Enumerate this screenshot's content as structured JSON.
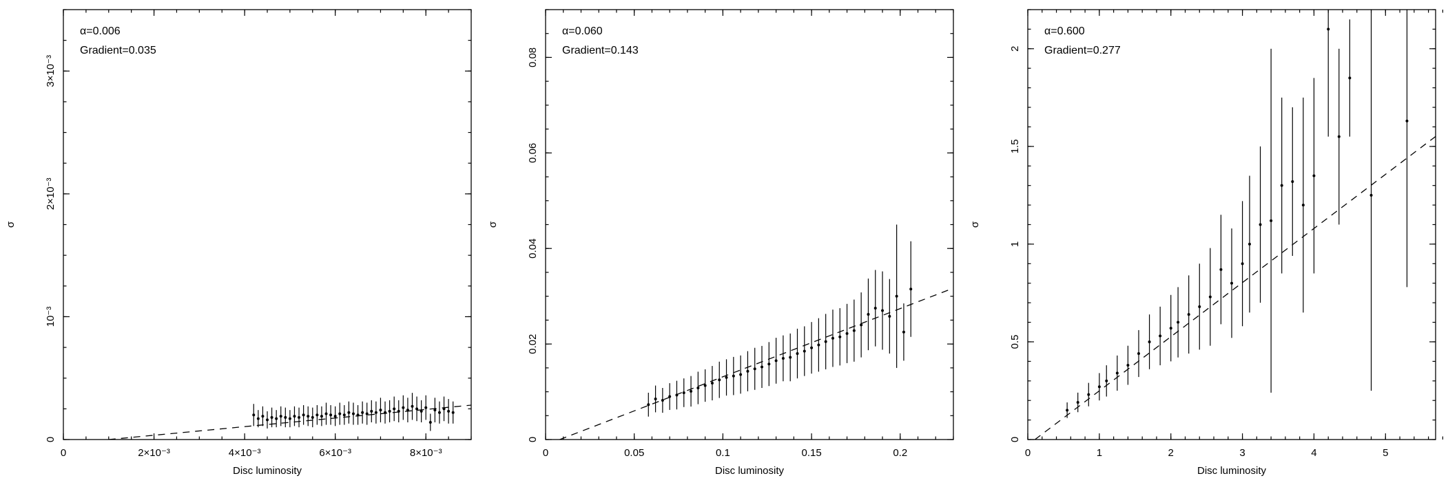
{
  "figure": {
    "background": "#ffffff",
    "ink": "#000000",
    "panel_count": 3
  },
  "chart_data": [
    {
      "type": "scatter",
      "alpha": 0.006,
      "gradient": 0.035,
      "annotation_alpha": "α=0.006",
      "annotation_gradient": "Gradient=0.035",
      "xlabel": "Disc luminosity",
      "ylabel": "σ",
      "xlim": [
        0,
        0.009
      ],
      "ylim": [
        0,
        0.0035
      ],
      "xminor": 0.0005,
      "yminor": 0.00025,
      "xticks": [
        [
          0,
          "0"
        ],
        [
          0.002,
          "2×10⁻³"
        ],
        [
          0.004,
          "4×10⁻³"
        ],
        [
          0.006,
          "6×10⁻³"
        ],
        [
          0.008,
          "8×10⁻³"
        ]
      ],
      "yticks": [
        [
          0,
          "0"
        ],
        [
          0.001,
          "10⁻³"
        ],
        [
          0.002,
          "2×10⁻³"
        ],
        [
          0.003,
          "3×10⁻³"
        ]
      ],
      "fit_line": {
        "x": [
          0.001,
          0.009
        ],
        "y": [
          0,
          0.00028
        ],
        "dashed": true
      },
      "points": [
        [
          0.0042,
          0.0002,
          9e-05
        ],
        [
          0.0043,
          0.00017,
          7e-05
        ],
        [
          0.0044,
          0.00019,
          8e-05
        ],
        [
          0.0045,
          0.00016,
          7e-05
        ],
        [
          0.0046,
          0.00018,
          8e-05
        ],
        [
          0.0047,
          0.00017,
          7e-05
        ],
        [
          0.0048,
          0.00019,
          8e-05
        ],
        [
          0.0049,
          0.00018,
          8e-05
        ],
        [
          0.005,
          0.00017,
          7e-05
        ],
        [
          0.0051,
          0.00019,
          8e-05
        ],
        [
          0.0052,
          0.00018,
          8e-05
        ],
        [
          0.0053,
          0.0002,
          8e-05
        ],
        [
          0.0054,
          0.00019,
          8e-05
        ],
        [
          0.0055,
          0.00018,
          8e-05
        ],
        [
          0.0056,
          0.0002,
          8e-05
        ],
        [
          0.0057,
          0.00019,
          8e-05
        ],
        [
          0.0058,
          0.00021,
          9e-05
        ],
        [
          0.0059,
          0.0002,
          8e-05
        ],
        [
          0.006,
          0.00019,
          8e-05
        ],
        [
          0.0061,
          0.00021,
          9e-05
        ],
        [
          0.0062,
          0.0002,
          8e-05
        ],
        [
          0.0063,
          0.00022,
          9e-05
        ],
        [
          0.0064,
          0.00021,
          9e-05
        ],
        [
          0.0065,
          0.0002,
          8e-05
        ],
        [
          0.0066,
          0.00022,
          9e-05
        ],
        [
          0.0067,
          0.00021,
          9e-05
        ],
        [
          0.0068,
          0.00023,
          9e-05
        ],
        [
          0.0069,
          0.00022,
          9e-05
        ],
        [
          0.007,
          0.00024,
          0.0001
        ],
        [
          0.0071,
          0.00022,
          9e-05
        ],
        [
          0.0072,
          0.00023,
          9e-05
        ],
        [
          0.0073,
          0.00025,
          0.0001
        ],
        [
          0.0074,
          0.00023,
          9e-05
        ],
        [
          0.0075,
          0.00026,
          0.0001
        ],
        [
          0.0076,
          0.00024,
          0.0001
        ],
        [
          0.0077,
          0.00027,
          0.00011
        ],
        [
          0.0078,
          0.00025,
          0.0001
        ],
        [
          0.0079,
          0.00023,
          9e-05
        ],
        [
          0.008,
          0.00026,
          0.0001
        ],
        [
          0.0081,
          0.00014,
          7e-05
        ],
        [
          0.0082,
          0.00024,
          0.0001
        ],
        [
          0.0083,
          0.00022,
          9e-05
        ],
        [
          0.0084,
          0.00025,
          0.0001
        ],
        [
          0.0085,
          0.00023,
          0.0001
        ],
        [
          0.0086,
          0.00022,
          9e-05
        ]
      ]
    },
    {
      "type": "scatter",
      "alpha": 0.06,
      "gradient": 0.143,
      "annotation_alpha": "α=0.060",
      "annotation_gradient": "Gradient=0.143",
      "xlabel": "Disc luminosity",
      "ylabel": "σ",
      "xlim": [
        0,
        0.23
      ],
      "ylim": [
        0,
        0.09
      ],
      "xminor": 0.01,
      "yminor": 0.005,
      "xticks": [
        [
          0,
          "0"
        ],
        [
          0.05,
          "0.05"
        ],
        [
          0.1,
          "0.1"
        ],
        [
          0.15,
          "0.15"
        ],
        [
          0.2,
          "0.2"
        ]
      ],
      "yticks": [
        [
          0,
          "0"
        ],
        [
          0.02,
          "0.02"
        ],
        [
          0.04,
          "0.04"
        ],
        [
          0.06,
          "0.06"
        ],
        [
          0.08,
          "0.08"
        ]
      ],
      "fit_line": {
        "x": [
          0.008,
          0.23
        ],
        "y": [
          0,
          0.0317
        ],
        "dashed": true
      },
      "points": [
        [
          0.058,
          0.0073,
          0.0025
        ],
        [
          0.062,
          0.0085,
          0.0028
        ],
        [
          0.066,
          0.0082,
          0.0026
        ],
        [
          0.07,
          0.009,
          0.0028
        ],
        [
          0.074,
          0.0093,
          0.003
        ],
        [
          0.078,
          0.0098,
          0.003
        ],
        [
          0.082,
          0.0101,
          0.0032
        ],
        [
          0.086,
          0.0108,
          0.0034
        ],
        [
          0.09,
          0.0113,
          0.0034
        ],
        [
          0.094,
          0.0118,
          0.0036
        ],
        [
          0.098,
          0.0125,
          0.0038
        ],
        [
          0.102,
          0.013,
          0.0038
        ],
        [
          0.106,
          0.0133,
          0.004
        ],
        [
          0.11,
          0.0136,
          0.004
        ],
        [
          0.114,
          0.0143,
          0.0042
        ],
        [
          0.118,
          0.0148,
          0.0044
        ],
        [
          0.122,
          0.0152,
          0.0044
        ],
        [
          0.126,
          0.0158,
          0.0046
        ],
        [
          0.13,
          0.0165,
          0.0048
        ],
        [
          0.134,
          0.017,
          0.0048
        ],
        [
          0.138,
          0.0172,
          0.005
        ],
        [
          0.142,
          0.018,
          0.0052
        ],
        [
          0.146,
          0.0185,
          0.0052
        ],
        [
          0.15,
          0.0192,
          0.0054
        ],
        [
          0.154,
          0.0198,
          0.0056
        ],
        [
          0.158,
          0.0205,
          0.0058
        ],
        [
          0.162,
          0.0212,
          0.006
        ],
        [
          0.166,
          0.0215,
          0.006
        ],
        [
          0.17,
          0.0222,
          0.0062
        ],
        [
          0.174,
          0.0228,
          0.0065
        ],
        [
          0.178,
          0.024,
          0.0068
        ],
        [
          0.182,
          0.0262,
          0.0075
        ],
        [
          0.186,
          0.0275,
          0.008
        ],
        [
          0.19,
          0.027,
          0.0082
        ],
        [
          0.194,
          0.0258,
          0.0078
        ],
        [
          0.198,
          0.03,
          0.015
        ],
        [
          0.202,
          0.0225,
          0.006
        ],
        [
          0.206,
          0.0315,
          0.01
        ]
      ]
    },
    {
      "type": "scatter",
      "alpha": 0.6,
      "gradient": 0.277,
      "annotation_alpha": "α=0.600",
      "annotation_gradient": "Gradient=0.277",
      "xlabel": "Disc luminosity",
      "ylabel": "σ",
      "xlim": [
        0,
        5.7
      ],
      "ylim": [
        0,
        2.2
      ],
      "xminor": 0.2,
      "yminor": 0.1,
      "xticks": [
        [
          0,
          "0"
        ],
        [
          1,
          "1"
        ],
        [
          2,
          "2"
        ],
        [
          3,
          "3"
        ],
        [
          4,
          "4"
        ],
        [
          5,
          "5"
        ]
      ],
      "yticks": [
        [
          0,
          "0"
        ],
        [
          0.5,
          "0.5"
        ],
        [
          1,
          "1"
        ],
        [
          1.5,
          "1.5"
        ],
        [
          2,
          "2"
        ]
      ],
      "fit_line": {
        "x": [
          0.1,
          5.7
        ],
        "y": [
          0,
          1.551
        ],
        "dashed": true
      },
      "points": [
        [
          0.55,
          0.15,
          0.04
        ],
        [
          0.7,
          0.19,
          0.05
        ],
        [
          0.85,
          0.23,
          0.06
        ],
        [
          1.0,
          0.27,
          0.07
        ],
        [
          1.1,
          0.3,
          0.08
        ],
        [
          1.25,
          0.34,
          0.09
        ],
        [
          1.4,
          0.38,
          0.1
        ],
        [
          1.55,
          0.44,
          0.12
        ],
        [
          1.7,
          0.5,
          0.14
        ],
        [
          1.85,
          0.53,
          0.15
        ],
        [
          2.0,
          0.57,
          0.17
        ],
        [
          2.1,
          0.6,
          0.18
        ],
        [
          2.25,
          0.64,
          0.2
        ],
        [
          2.4,
          0.68,
          0.22
        ],
        [
          2.55,
          0.73,
          0.25
        ],
        [
          2.7,
          0.87,
          0.28
        ],
        [
          2.85,
          0.8,
          0.28
        ],
        [
          3.0,
          0.9,
          0.32
        ],
        [
          3.1,
          1.0,
          0.35
        ],
        [
          3.25,
          1.1,
          0.4
        ],
        [
          3.4,
          1.12,
          0.88
        ],
        [
          3.55,
          1.3,
          0.45
        ],
        [
          3.7,
          1.32,
          0.38
        ],
        [
          3.85,
          1.2,
          0.55
        ],
        [
          4.0,
          1.35,
          0.5
        ],
        [
          4.2,
          2.1,
          0.55
        ],
        [
          4.35,
          1.55,
          0.45
        ],
        [
          4.5,
          1.85,
          0.3
        ],
        [
          4.8,
          1.25,
          1.0
        ],
        [
          5.3,
          1.63,
          0.85
        ]
      ]
    }
  ]
}
